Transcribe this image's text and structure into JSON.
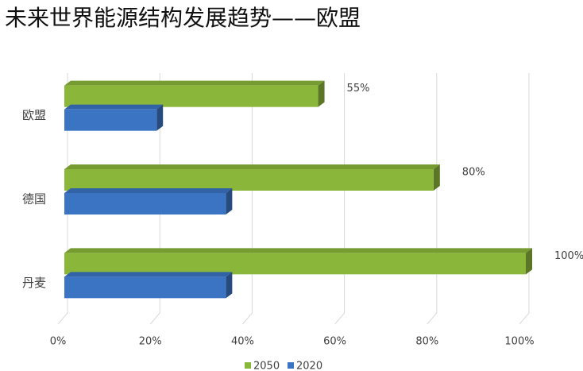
{
  "chart_data": {
    "type": "bar3d_horizontal",
    "title": "未来世界能源结构发展趋势——欧盟",
    "categories": [
      "欧盟",
      "德国",
      "丹麦"
    ],
    "series": [
      {
        "name": "2050",
        "color": "#8ab63a",
        "values": [
          55,
          80,
          100
        ],
        "value_labels": [
          "55%",
          "80%",
          "100%"
        ]
      },
      {
        "name": "2020",
        "color": "#3c74c4",
        "values": [
          20,
          35,
          35
        ]
      }
    ],
    "xlim": [
      0,
      100
    ],
    "xticks": [
      {
        "value": 0,
        "label": "0%"
      },
      {
        "value": 20,
        "label": "20%"
      },
      {
        "value": 40,
        "label": "40%"
      },
      {
        "value": 60,
        "label": "60%"
      },
      {
        "value": 80,
        "label": "80%"
      },
      {
        "value": 100,
        "label": "100%"
      }
    ],
    "grid": true,
    "legend": "bottom"
  }
}
